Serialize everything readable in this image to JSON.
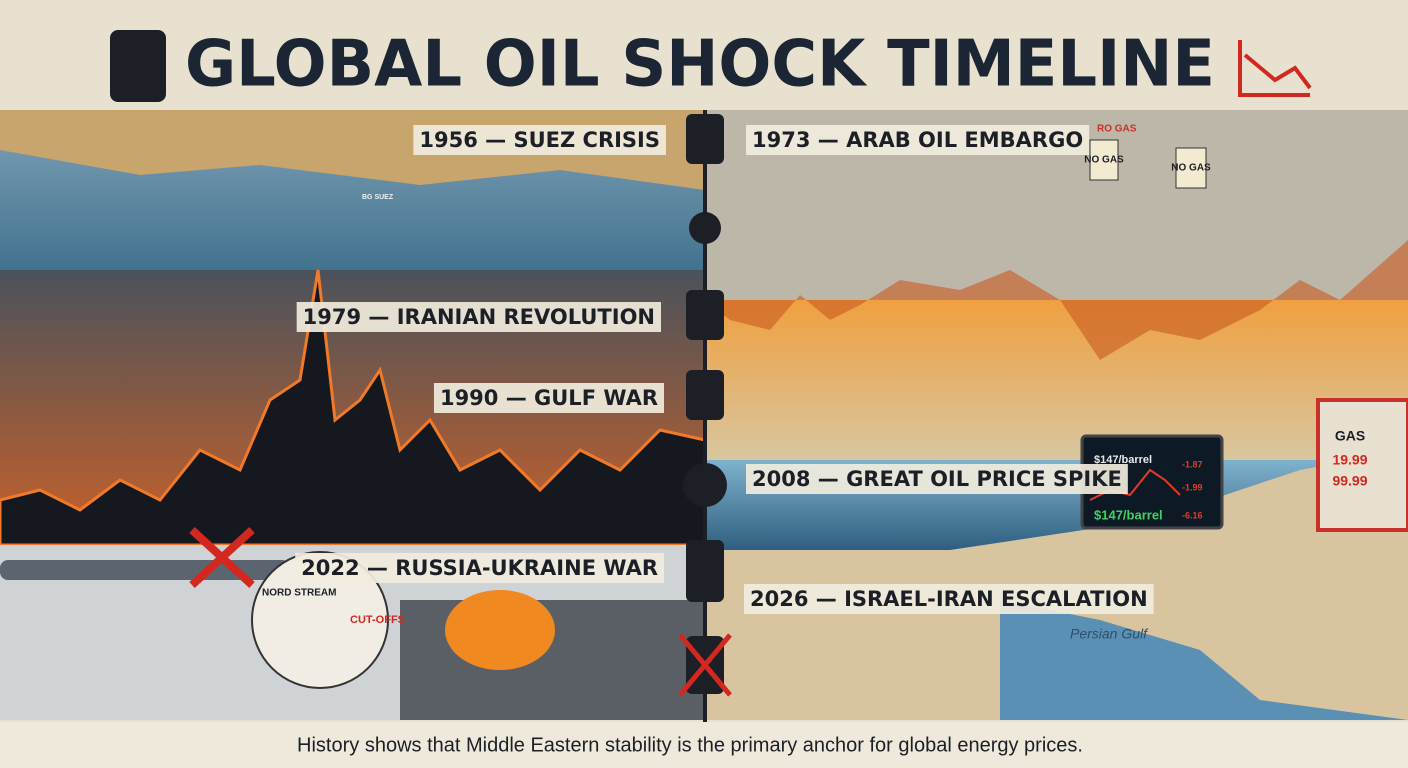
{
  "header": {
    "title": "GLOBAL OIL SHOCK TIMELINE"
  },
  "timeline": {
    "events": [
      "1956 — SUEZ CRISIS",
      "1973 — ARAB OIL EMBARGO",
      "1979 — IRANIAN REVOLUTION",
      "1990 — GULF WAR",
      "2008 — GREAT OIL PRICE SPIKE",
      "2022 — RUSSIA-UKRAINE WAR",
      "2026 — ISRAEL-IRAN ESCALATION"
    ]
  },
  "illustration": {
    "ship_name": "BG SUEZ",
    "station_sign": "RO GAS",
    "protest_signs": [
      "NO GAS",
      "NO GAS"
    ],
    "pipeline_label": "NORD STREAM",
    "cutoff_label": "CUT-OFFS",
    "ticker_price": "$147/barrel",
    "ticker_price_big": "$147/barrel",
    "ticker_changes": [
      "-1.87",
      "-1.99",
      "-6.16"
    ],
    "pump_sign": "GAS",
    "pump_prices": [
      "19.99",
      "99.99"
    ],
    "map_label": "Persian Gulf"
  },
  "footer": {
    "text": "History shows that Middle Eastern stability is the primary anchor for global energy prices."
  }
}
